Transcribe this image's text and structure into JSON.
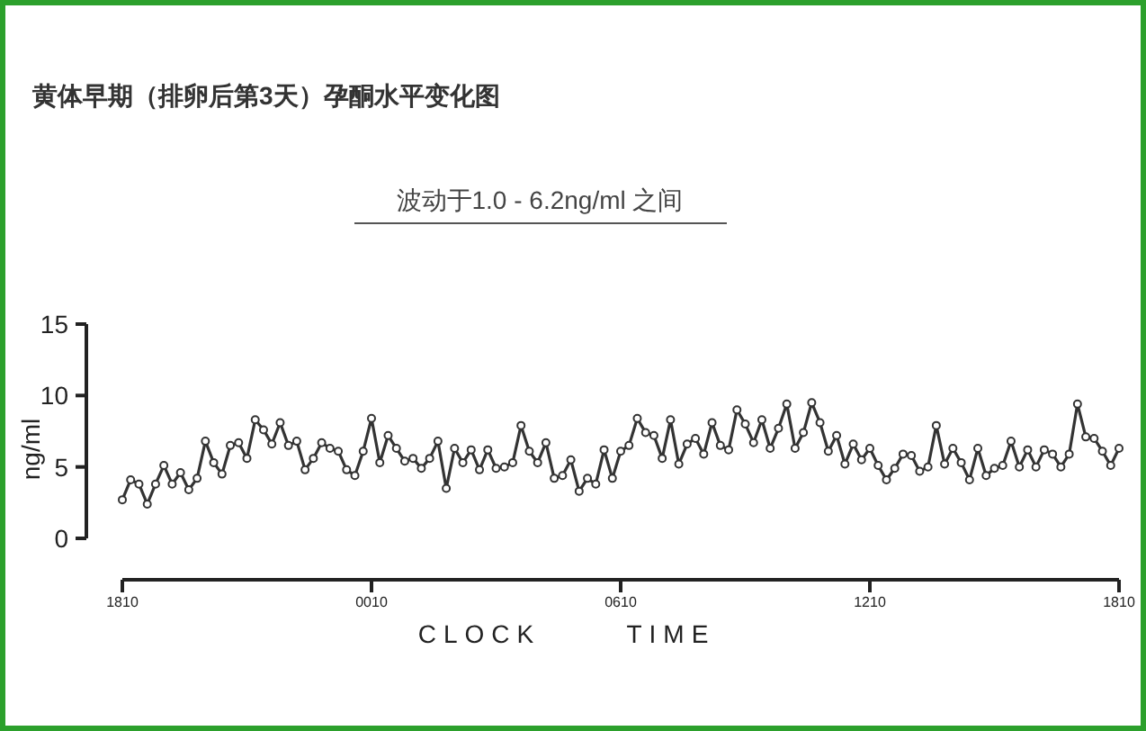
{
  "chart_data": {
    "type": "line",
    "title": "黄体早期（排卵后第3天）孕酮水平变化图",
    "subtitle": "波动于1.0 - 6.2ng/ml 之间",
    "xlabel": "CLOCK TIME",
    "ylabel": "ng/ml",
    "categories": [
      "1810",
      null,
      null,
      null,
      null,
      null,
      null,
      null,
      null,
      null,
      null,
      null,
      null,
      null,
      null,
      null,
      null,
      null,
      null,
      null,
      null,
      null,
      null,
      null,
      null,
      null,
      null,
      null,
      null,
      null,
      "0010",
      null,
      null,
      null,
      null,
      null,
      null,
      null,
      null,
      null,
      null,
      null,
      null,
      null,
      null,
      null,
      null,
      null,
      null,
      null,
      null,
      null,
      null,
      null,
      null,
      null,
      null,
      null,
      null,
      null,
      "0610",
      null,
      null,
      null,
      null,
      null,
      null,
      null,
      null,
      null,
      null,
      null,
      null,
      null,
      null,
      null,
      null,
      null,
      null,
      null,
      null,
      null,
      null,
      null,
      null,
      null,
      null,
      null,
      null,
      null,
      "1210",
      null,
      null,
      null,
      null,
      null,
      null,
      null,
      null,
      null,
      null,
      null,
      null,
      null,
      null,
      null,
      null,
      null,
      null,
      null,
      null,
      null,
      null,
      null,
      null,
      null,
      null,
      null,
      null,
      null,
      "1810"
    ],
    "ylim": [
      0,
      15
    ],
    "yticks": [
      0,
      5,
      10,
      15
    ],
    "grid": false,
    "marker": "circle",
    "line_style": "solid",
    "series": [
      {
        "color": "#333333",
        "values": [
          2.7,
          4.1,
          3.8,
          2.4,
          3.8,
          5.1,
          3.8,
          4.6,
          3.4,
          4.2,
          6.8,
          5.3,
          4.5,
          6.5,
          6.7,
          5.6,
          8.3,
          7.6,
          6.6,
          8.1,
          6.5,
          6.8,
          4.8,
          5.6,
          6.7,
          6.3,
          6.1,
          4.8,
          4.4,
          6.1,
          8.4,
          5.3,
          7.2,
          6.3,
          5.4,
          5.6,
          4.9,
          5.6,
          6.8,
          3.5,
          6.3,
          5.3,
          6.2,
          4.8,
          6.2,
          4.9,
          5,
          5.3,
          7.9,
          6.1,
          5.3,
          6.7,
          4.2,
          4.4,
          5.5,
          3.3,
          4.2,
          3.8,
          6.2,
          4.2,
          6.1,
          6.5,
          8.4,
          7.4,
          7.2,
          5.6,
          8.3,
          5.2,
          6.6,
          7,
          5.9,
          8.1,
          6.5,
          6.2,
          9,
          8,
          6.7,
          8.3,
          6.3,
          7.7,
          9.4,
          6.3,
          7.4,
          9.5,
          8.1,
          6.1,
          7.2,
          5.2,
          6.6,
          5.5,
          6.3,
          5.1,
          4.1,
          4.9,
          5.9,
          5.8,
          4.7,
          5,
          7.9,
          5.2,
          6.3,
          5.3,
          4.1,
          6.3,
          4.4,
          4.9,
          5.1,
          6.8,
          5,
          6.2,
          5,
          6.2,
          5.9,
          5,
          5.9,
          9.4,
          7.1,
          7,
          6.1,
          5.1,
          6.3
        ]
      }
    ]
  }
}
